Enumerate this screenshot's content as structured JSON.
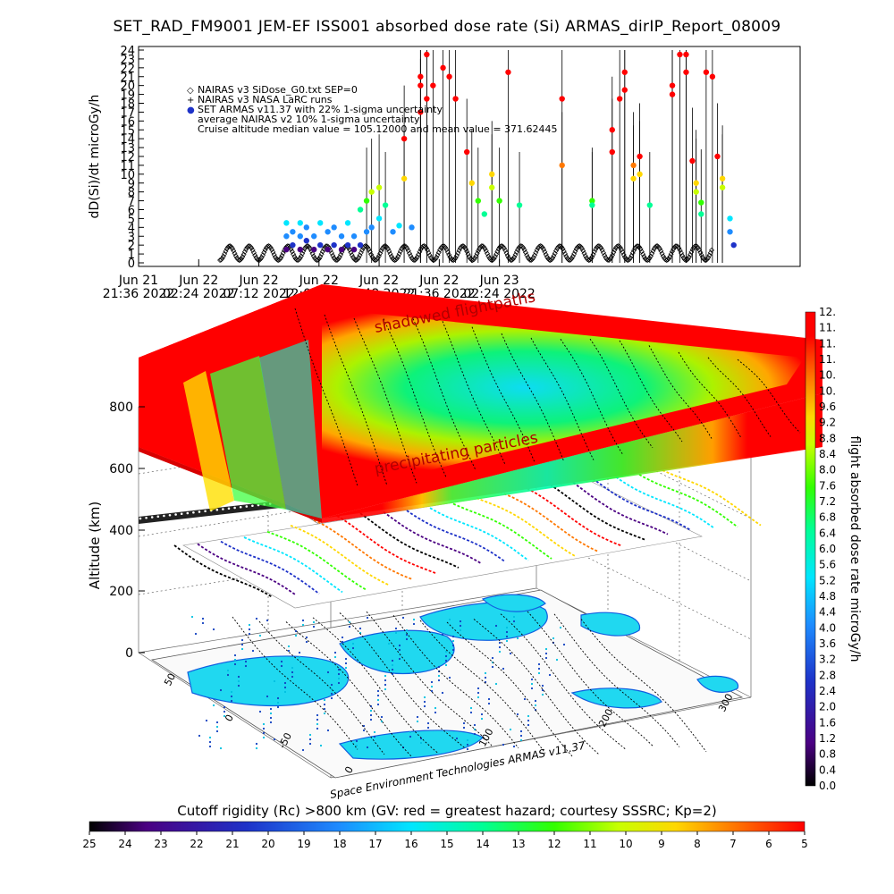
{
  "title": "SET_RAD_FM9001  JEM-EF ISS001 absorbed dose rate (Si) ARMAS_dirIP_Report_08009",
  "chart_data": [
    {
      "type": "scatter",
      "ylabel": "dD(Si)/dt microGy/h",
      "ylim": [
        0,
        24
      ],
      "yticks": [
        0,
        1,
        2,
        3,
        4,
        5,
        6,
        7,
        8,
        9,
        10,
        11,
        12,
        13,
        14,
        15,
        16,
        17,
        18,
        19,
        20,
        21,
        22,
        23,
        24
      ],
      "xlim_hours": [
        0,
        52.8
      ],
      "xticks": [
        {
          "l1": "Jun 21",
          "l2": "21:36 2022",
          "h": 0
        },
        {
          "l1": "Jun 22",
          "l2": "02:24 2022",
          "h": 4.8
        },
        {
          "l1": "Jun 22",
          "l2": "07:12 2022",
          "h": 9.6
        },
        {
          "l1": "Jun 22",
          "l2": "12:00 2022",
          "h": 14.4
        },
        {
          "l1": "Jun 22",
          "l2": "16:48 2022",
          "h": 19.2
        },
        {
          "l1": "Jun 22",
          "l2": "21:36 2022",
          "h": 24.0
        },
        {
          "l1": "Jun 23",
          "l2": "02:24 2022",
          "h": 28.8
        }
      ],
      "legend": [
        {
          "marker": "◇",
          "text": "NAIRAS v3 SiDose_G0.txt SEP=0"
        },
        {
          "marker": "+",
          "text": "NAIRAS v3 NASA LaRC runs"
        },
        {
          "marker": "●",
          "text": "SET ARMAS v11.37 with 22% 1-sigma uncertainty"
        },
        {
          "marker": "",
          "text": "average NAIRAS v2 10% 1-sigma uncertainty"
        },
        {
          "marker": "",
          "text": "Cruise altitude median value = 105.12000 and mean value = 371.62445"
        }
      ],
      "series": [
        {
          "name": "NAIRAS v3 SiDose_G0.txt SEP=0",
          "pattern": "periodic",
          "baseline": 0.3,
          "peak": 1.9,
          "period_hours": 1.55,
          "t_start": 6.5,
          "t_end": 45.8
        },
        {
          "name": "SET ARMAS v11.37 with 22% 1-sigma uncertainty",
          "points": [
            [
              11.8,
              1.5
            ],
            [
              11.8,
              3
            ],
            [
              11.8,
              4.5
            ],
            [
              12.3,
              2
            ],
            [
              12.3,
              3.5
            ],
            [
              12.9,
              1.5
            ],
            [
              12.9,
              3
            ],
            [
              12.9,
              4.5
            ],
            [
              13.4,
              2.5
            ],
            [
              13.4,
              4
            ],
            [
              14.0,
              1.5
            ],
            [
              14.0,
              3
            ],
            [
              14.5,
              2
            ],
            [
              14.5,
              4.5
            ],
            [
              15.1,
              1.5
            ],
            [
              15.1,
              3.5
            ],
            [
              15.6,
              2
            ],
            [
              15.6,
              4
            ],
            [
              16.2,
              1.5
            ],
            [
              16.2,
              3
            ],
            [
              16.7,
              2
            ],
            [
              16.7,
              4.5
            ],
            [
              17.2,
              1.5
            ],
            [
              17.2,
              3
            ],
            [
              17.7,
              2
            ],
            [
              17.7,
              6
            ],
            [
              18.2,
              3.5
            ],
            [
              18.2,
              7
            ],
            [
              18.6,
              8
            ],
            [
              18.6,
              4
            ],
            [
              19.2,
              8.5
            ],
            [
              19.2,
              5
            ],
            [
              19.7,
              6.5
            ],
            [
              20.3,
              3.5
            ],
            [
              20.8,
              4.2
            ],
            [
              21.2,
              9.5
            ],
            [
              21.2,
              14
            ],
            [
              21.8,
              4
            ],
            [
              22.5,
              21
            ],
            [
              22.5,
              20
            ],
            [
              22.5,
              17
            ],
            [
              23.0,
              23.5
            ],
            [
              23.0,
              18.5
            ],
            [
              23.5,
              20
            ],
            [
              24.3,
              22
            ],
            [
              24.8,
              21
            ],
            [
              25.3,
              18.5
            ],
            [
              26.2,
              12.5
            ],
            [
              26.6,
              9
            ],
            [
              27.1,
              7
            ],
            [
              27.6,
              5.5
            ],
            [
              28.2,
              10
            ],
            [
              28.2,
              8.5
            ],
            [
              28.8,
              7
            ],
            [
              29.5,
              21.5
            ],
            [
              30.4,
              6.5
            ],
            [
              33.8,
              18.5
            ],
            [
              33.8,
              11
            ],
            [
              36.2,
              7
            ],
            [
              36.2,
              6.5
            ],
            [
              37.8,
              15
            ],
            [
              37.8,
              12.5
            ],
            [
              38.4,
              18.5
            ],
            [
              38.8,
              19.5
            ],
            [
              38.8,
              21.5
            ],
            [
              39.5,
              11
            ],
            [
              39.5,
              9.5
            ],
            [
              40.0,
              12
            ],
            [
              40.0,
              10
            ],
            [
              40.8,
              6.5
            ],
            [
              42.6,
              19
            ],
            [
              42.6,
              20
            ],
            [
              43.2,
              23.5
            ],
            [
              43.7,
              23.5
            ],
            [
              43.7,
              21.5
            ],
            [
              44.2,
              11.5
            ],
            [
              44.5,
              9
            ],
            [
              44.5,
              8
            ],
            [
              44.9,
              5.5
            ],
            [
              44.9,
              6.8
            ],
            [
              45.3,
              21.5
            ],
            [
              45.8,
              21
            ],
            [
              46.2,
              12
            ],
            [
              46.6,
              9.5
            ],
            [
              46.6,
              8.5
            ],
            [
              47.2,
              5
            ],
            [
              47.2,
              3.5
            ],
            [
              47.5,
              2
            ]
          ]
        }
      ]
    },
    {
      "type": "3d-surface",
      "ylabel": "Altitude (km)",
      "zticks": [
        0,
        200,
        400,
        600,
        800
      ],
      "latitude_ticks": [
        50,
        0,
        -50
      ],
      "longitude_ticks": [
        0,
        100,
        200,
        300
      ],
      "annotations": [
        "shadowed flightpaths",
        "precipitating particles",
        "Space Environment Technologies ARMAS v11.37"
      ]
    }
  ],
  "dose_colorbar": {
    "label": "flight absorbed dose rate microGy/h",
    "ticks": [
      "0.0",
      "0.4",
      "0.8",
      "1.2",
      "1.6",
      "2.0",
      "2.4",
      "2.8",
      "3.2",
      "3.6",
      "4.0",
      "4.4",
      "4.8",
      "5.2",
      "5.6",
      "6.0",
      "6.4",
      "6.8",
      "7.2",
      "7.6",
      "8.0",
      "8.4",
      "8.8",
      "9.2",
      "9.6",
      "10.",
      "10.",
      "11.",
      "11.",
      "11.",
      "12."
    ]
  },
  "cutoff_colorbar": {
    "label": "Cutoff rigidity (Rc) >800 km (GV: red = greatest hazard; courtesy SSSRC; Kp=2)",
    "ticks": [
      "25",
      "24",
      "23",
      "22",
      "21",
      "20",
      "19",
      "18",
      "17",
      "16",
      "15",
      "14",
      "13",
      "12",
      "11",
      "10",
      "9",
      "8",
      "7",
      "6",
      "5"
    ]
  },
  "colors": {
    "scale": [
      "#000000",
      "#4b0082",
      "#1e32c8",
      "#1e8cff",
      "#00e6ff",
      "#00ff96",
      "#32ff00",
      "#c8ff00",
      "#ffd700",
      "#ff7800",
      "#ff0000"
    ]
  }
}
